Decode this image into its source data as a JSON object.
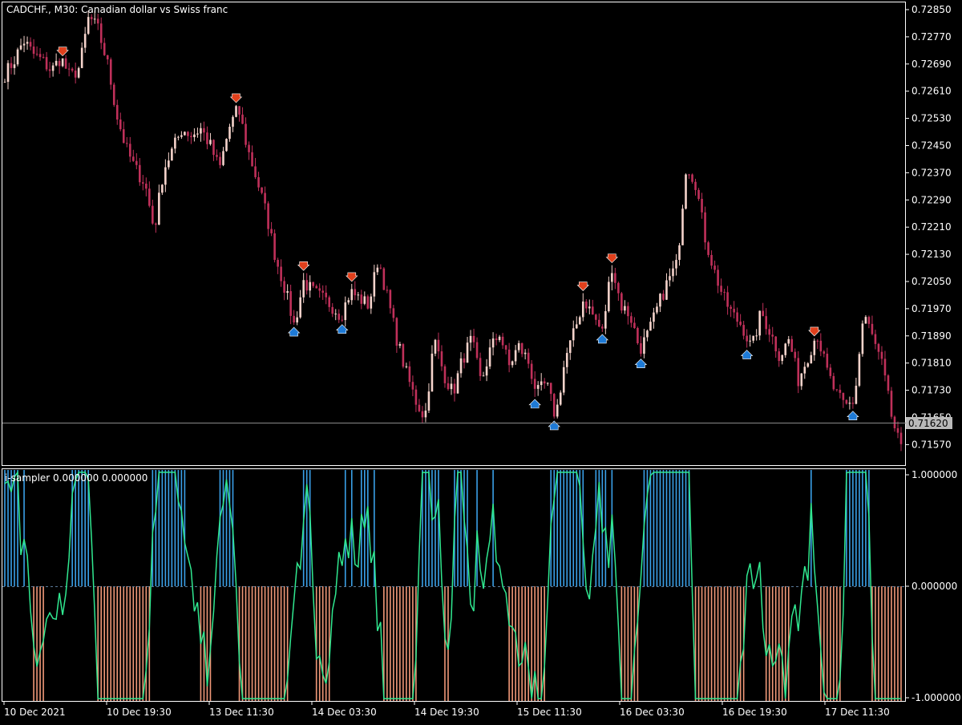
{
  "price_panel": {
    "title": "CADCHF., M30:  Canadian dollar vs Swiss franc",
    "current_price": "0.71620",
    "price_labels": [
      "0.72850",
      "0.72770",
      "0.72690",
      "0.72610",
      "0.72530",
      "0.72450",
      "0.72370",
      "0.72290",
      "0.72210",
      "0.72130",
      "0.72050",
      "0.71970",
      "0.71890",
      "0.71810",
      "0.71730",
      "0.71650",
      "0.71570"
    ],
    "bull_color": "#f5d3cb",
    "bear_color": "#c0305a",
    "buy_arrow_color": "#1e7ad6",
    "sell_arrow_color": "#e0401c"
  },
  "indicator_panel": {
    "title": "i-sampler 0.000000 0.000000",
    "level_labels": [
      "1.000000",
      "0.000000",
      "-1.000000"
    ],
    "positive_hist_color": "#3aa0e8",
    "negative_hist_color": "#f09878",
    "line_color": "#30e890"
  },
  "time_axis": {
    "labels": [
      "10 Dec 2021",
      "10 Dec 19:30",
      "13 Dec 11:30",
      "14 Dec 03:30",
      "14 Dec 19:30",
      "15 Dec 11:30",
      "16 Dec 03:30",
      "16 Dec 19:30",
      "17 Dec 11:30"
    ]
  },
  "chart_data": {
    "type": "candlestick",
    "symbol": "CADCHF.",
    "timeframe": "M30",
    "ylim": [
      0.7152,
      0.7289
    ],
    "x": [
      "10 Dec 2021",
      "10 Dec 19:30",
      "13 Dec 11:30",
      "14 Dec 03:30",
      "14 Dec 19:30",
      "15 Dec 11:30",
      "16 Dec 03:30",
      "16 Dec 19:30",
      "17 Dec 11:30"
    ],
    "close_path": [
      0.7266,
      0.727,
      0.7276,
      0.7272,
      0.727,
      0.7267,
      0.7271,
      0.7265,
      0.7268,
      0.7283,
      0.7279,
      0.7269,
      0.7254,
      0.7244,
      0.7238,
      0.7234,
      0.722,
      0.7238,
      0.7244,
      0.725,
      0.7248,
      0.725,
      0.7245,
      0.7238,
      0.725,
      0.7256,
      0.7244,
      0.7235,
      0.7225,
      0.7212,
      0.7203,
      0.7192,
      0.7205,
      0.7202,
      0.72,
      0.7198,
      0.7195,
      0.7202,
      0.72,
      0.7198,
      0.7212,
      0.72,
      0.7188,
      0.7178,
      0.717,
      0.7165,
      0.7188,
      0.7178,
      0.7172,
      0.7182,
      0.7188,
      0.7175,
      0.7185,
      0.719,
      0.718,
      0.7186,
      0.7182,
      0.7172,
      0.7175,
      0.7165,
      0.7182,
      0.719,
      0.72,
      0.7195,
      0.719,
      0.721,
      0.7198,
      0.7195,
      0.7185,
      0.719,
      0.7198,
      0.7205,
      0.721,
      0.724,
      0.7234,
      0.7218,
      0.7208,
      0.72,
      0.7195,
      0.7192,
      0.7185,
      0.7196,
      0.719,
      0.7183,
      0.7188,
      0.7176,
      0.7183,
      0.719,
      0.7179,
      0.7172,
      0.7168,
      0.717,
      0.7196,
      0.7188,
      0.718,
      0.7165,
      0.7155
    ],
    "indicator_ylim": [
      -1,
      1
    ]
  }
}
